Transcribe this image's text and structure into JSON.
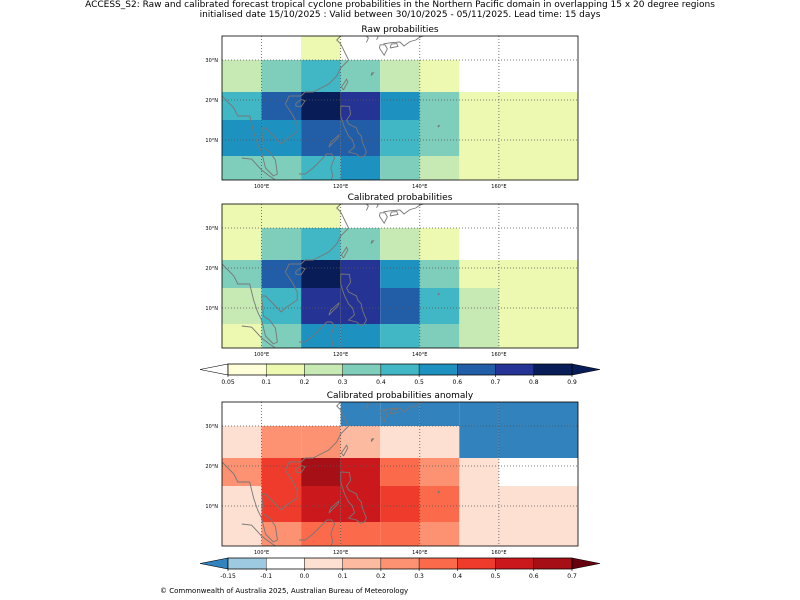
{
  "figure": {
    "title_line1": "ACCESS_S2: Raw and calibrated forecast tropical cyclone probabilities in the Northern Pacific domain in overlapping 15 x 20 degree regions",
    "title_line2": "initialised date 15/10/2025 :  Valid between 30/10/2025 - 05/11/2025. Lead time: 15 days",
    "copyright": "© Commonwealth of Australia 2025, Australian Bureau of Meteorology"
  },
  "chart_data": [
    {
      "type": "heatmap",
      "title": "Raw probabilities",
      "x_edges": [
        90,
        100,
        110,
        120,
        130,
        140,
        150,
        160,
        180
      ],
      "y_edges": [
        0,
        6,
        15,
        22,
        30,
        36
      ],
      "x_ticks": [
        100,
        120,
        140,
        160
      ],
      "x_tick_labels": [
        "100°E",
        "120°E",
        "140°E",
        "160°E"
      ],
      "y_ticks": [
        10,
        20,
        30
      ],
      "y_tick_labels": [
        "10°N",
        "20°N",
        "30°N"
      ],
      "lon_range": [
        90,
        180
      ],
      "lat_range": [
        0,
        36
      ],
      "y_band_values": {
        "note": "rows listed from south to north; values in probability units",
        "rows": [
          [
            0.35,
            0.35,
            0.45,
            0.5,
            0.35,
            0.25,
            0.15,
            0.15
          ],
          [
            0.5,
            0.5,
            0.65,
            0.65,
            0.45,
            0.35,
            0.15,
            0.15
          ],
          [
            0.45,
            0.65,
            0.85,
            0.75,
            0.55,
            0.35,
            0.15,
            0.1
          ],
          [
            0.25,
            0.35,
            0.45,
            0.35,
            0.25,
            0.15,
            null,
            null
          ],
          [
            null,
            null,
            0.1,
            null,
            null,
            null,
            null,
            null
          ]
        ]
      }
    },
    {
      "type": "heatmap",
      "title": "Calibrated probabilities",
      "x_edges": [
        90,
        100,
        110,
        120,
        130,
        140,
        150,
        160,
        180
      ],
      "y_edges": [
        0,
        6,
        15,
        22,
        30,
        36
      ],
      "x_ticks": [
        100,
        120,
        140,
        160
      ],
      "x_tick_labels": [
        "100°E",
        "120°E",
        "140°E",
        "160°E"
      ],
      "y_ticks": [
        10,
        20,
        30
      ],
      "y_tick_labels": [
        "10°N",
        "20°N",
        "30°N"
      ],
      "lon_range": [
        90,
        180
      ],
      "lat_range": [
        0,
        36
      ],
      "y_band_values": {
        "note": "rows listed from south to north; values in probability units",
        "rows": [
          [
            0.15,
            0.35,
            0.55,
            0.55,
            0.45,
            0.35,
            0.25,
            0.15
          ],
          [
            0.25,
            0.45,
            0.75,
            0.75,
            0.65,
            0.45,
            0.25,
            0.15
          ],
          [
            0.35,
            0.65,
            0.85,
            0.75,
            0.55,
            0.35,
            0.15,
            0.1
          ],
          [
            0.15,
            0.35,
            0.45,
            0.35,
            0.25,
            0.15,
            null,
            null
          ],
          [
            0.1,
            0.1,
            0.1,
            null,
            null,
            null,
            null,
            null
          ]
        ]
      },
      "colorbar": {
        "ticks": [
          "0.05",
          "0.1",
          "0.2",
          "0.3",
          "0.4",
          "0.5",
          "0.6",
          "0.7",
          "0.8",
          "0.9"
        ],
        "colors": [
          "#ffffd9",
          "#edf8b1",
          "#c7e9b4",
          "#7fcdbb",
          "#41b6c4",
          "#1d91c0",
          "#225ea8",
          "#253494",
          "#081d58"
        ],
        "under_color": "#ffffff",
        "over_color": "#081d58"
      }
    },
    {
      "type": "heatmap",
      "title": "Calibrated probabilities anomaly",
      "x_edges": [
        90,
        100,
        110,
        120,
        130,
        140,
        150,
        160,
        180
      ],
      "y_edges": [
        0,
        6,
        15,
        22,
        30,
        36
      ],
      "x_ticks": [
        100,
        120,
        140,
        160
      ],
      "x_tick_labels": [
        "100°E",
        "120°E",
        "140°E",
        "160°E"
      ],
      "y_ticks": [
        10,
        20,
        30
      ],
      "y_tick_labels": [
        "10°N",
        "20°N",
        "30°N"
      ],
      "lon_range": [
        90,
        180
      ],
      "lat_range": [
        0,
        36
      ],
      "y_band_values": {
        "note": "rows listed from south to north; anomaly units",
        "rows": [
          [
            0.05,
            0.25,
            0.35,
            0.35,
            0.35,
            0.25,
            0.05,
            0.0
          ],
          [
            0.05,
            0.45,
            0.55,
            0.55,
            0.45,
            0.35,
            0.05,
            0.0
          ],
          [
            0.25,
            0.45,
            0.65,
            0.55,
            0.35,
            0.25,
            0.0,
            -0.05
          ],
          [
            0.0,
            0.25,
            0.25,
            0.15,
            0.05,
            0.0,
            -0.2,
            -0.2
          ],
          [
            -0.05,
            -0.05,
            -0.05,
            -0.2,
            -0.2,
            -0.2,
            -0.2,
            -0.2
          ]
        ]
      },
      "colorbar": {
        "ticks": [
          "-0.15",
          "-0.1",
          "0.0",
          "0.1",
          "0.2",
          "0.3",
          "0.4",
          "0.5",
          "0.6",
          "0.7"
        ],
        "colors": [
          "#9ecae1",
          "#ffffff",
          "#fee0d2",
          "#fcbba1",
          "#fc9272",
          "#fb6a4a",
          "#ef3b2c",
          "#cb181d",
          "#a50f15"
        ],
        "under_color": "#3182bd",
        "over_color": "#67000d"
      }
    }
  ]
}
